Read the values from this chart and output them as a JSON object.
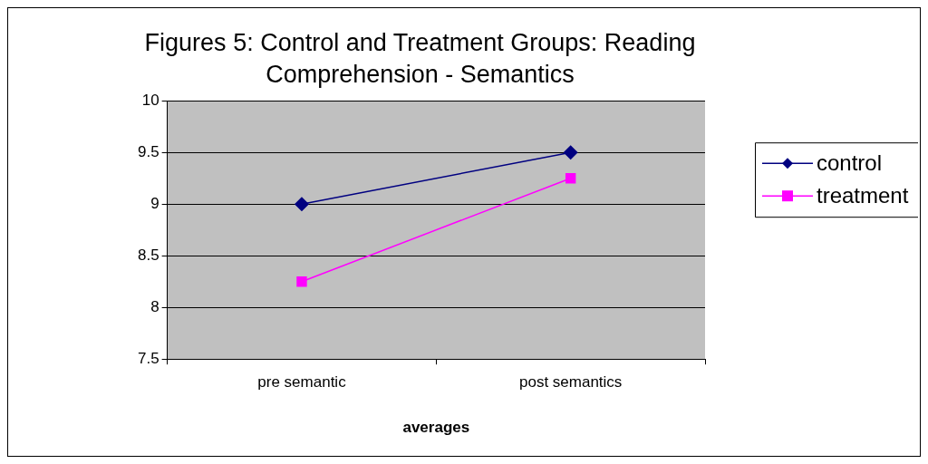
{
  "chart_data": {
    "type": "line",
    "title": "Figures 5: Control and Treatment Groups: Reading Comprehension - Semantics",
    "xlabel": "averages",
    "categories": [
      "pre semantic",
      "post semantics"
    ],
    "series": [
      {
        "name": "control",
        "color": "#000080",
        "values": [
          9,
          9.5
        ],
        "marker": "diamond"
      },
      {
        "name": "treatment",
        "color": "#ff00ff",
        "values": [
          8.25,
          9.25
        ],
        "marker": "square"
      }
    ],
    "ylim": [
      7.5,
      10
    ],
    "yticks": [
      7.5,
      8,
      8.5,
      9,
      9.5,
      10
    ],
    "grid": "y",
    "legend": "right",
    "line_style": "solid"
  }
}
